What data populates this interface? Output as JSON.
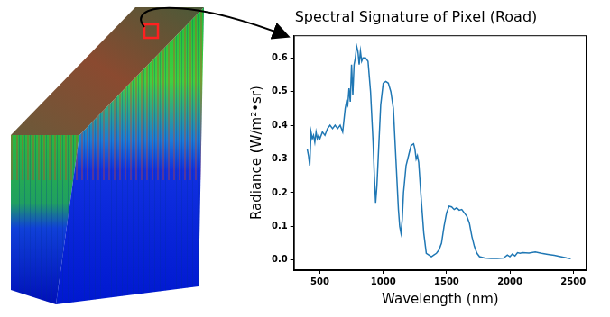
{
  "chart_data": {
    "type": "line",
    "title": "Spectral Signature of Pixel (Road)",
    "x_label": "Wavelength (nm)",
    "y_label": "Radiance (W/m²•sr)",
    "x": [
      400,
      410,
      420,
      430,
      440,
      450,
      460,
      470,
      480,
      490,
      500,
      520,
      540,
      560,
      580,
      600,
      620,
      640,
      660,
      680,
      700,
      710,
      720,
      730,
      740,
      750,
      760,
      770,
      780,
      790,
      800,
      810,
      820,
      830,
      840,
      860,
      880,
      900,
      920,
      930,
      940,
      950,
      960,
      980,
      1000,
      1020,
      1040,
      1060,
      1080,
      1100,
      1120,
      1130,
      1140,
      1150,
      1160,
      1180,
      1200,
      1220,
      1240,
      1250,
      1260,
      1270,
      1280,
      1300,
      1320,
      1340,
      1360,
      1380,
      1400,
      1420,
      1440,
      1460,
      1480,
      1500,
      1520,
      1540,
      1560,
      1580,
      1600,
      1620,
      1640,
      1660,
      1680,
      1700,
      1720,
      1740,
      1760,
      1780,
      1800,
      1850,
      1900,
      1950,
      1980,
      2000,
      2020,
      2040,
      2060,
      2080,
      2100,
      2150,
      2200,
      2250,
      2300,
      2350,
      2400,
      2450,
      2480
    ],
    "values": [
      0.33,
      0.31,
      0.28,
      0.38,
      0.36,
      0.37,
      0.35,
      0.38,
      0.36,
      0.37,
      0.36,
      0.38,
      0.37,
      0.39,
      0.4,
      0.39,
      0.4,
      0.39,
      0.4,
      0.38,
      0.45,
      0.47,
      0.46,
      0.51,
      0.47,
      0.58,
      0.49,
      0.58,
      0.6,
      0.635,
      0.62,
      0.58,
      0.62,
      0.59,
      0.6,
      0.6,
      0.59,
      0.5,
      0.35,
      0.25,
      0.17,
      0.22,
      0.3,
      0.46,
      0.525,
      0.53,
      0.525,
      0.5,
      0.45,
      0.3,
      0.15,
      0.1,
      0.08,
      0.12,
      0.2,
      0.28,
      0.31,
      0.34,
      0.345,
      0.33,
      0.3,
      0.31,
      0.29,
      0.18,
      0.08,
      0.02,
      0.015,
      0.01,
      0.015,
      0.02,
      0.03,
      0.05,
      0.1,
      0.14,
      0.16,
      0.158,
      0.15,
      0.155,
      0.148,
      0.15,
      0.14,
      0.13,
      0.11,
      0.07,
      0.04,
      0.02,
      0.01,
      0.008,
      0.006,
      0.005,
      0.005,
      0.006,
      0.015,
      0.01,
      0.018,
      0.012,
      0.022,
      0.02,
      0.022,
      0.021,
      0.024,
      0.02,
      0.017,
      0.014,
      0.01,
      0.006,
      0.004
    ],
    "color": "#1f77b4",
    "xlim": [
      295,
      2605
    ],
    "ylim": [
      -0.03,
      0.667
    ],
    "xticks": [
      500,
      1000,
      1500,
      2000,
      2500
    ],
    "yticks": [
      {
        "value": 0,
        "label": "0.0"
      },
      0.1,
      0.2,
      0.3,
      0.4,
      0.5,
      0.6
    ],
    "grid": false
  }
}
